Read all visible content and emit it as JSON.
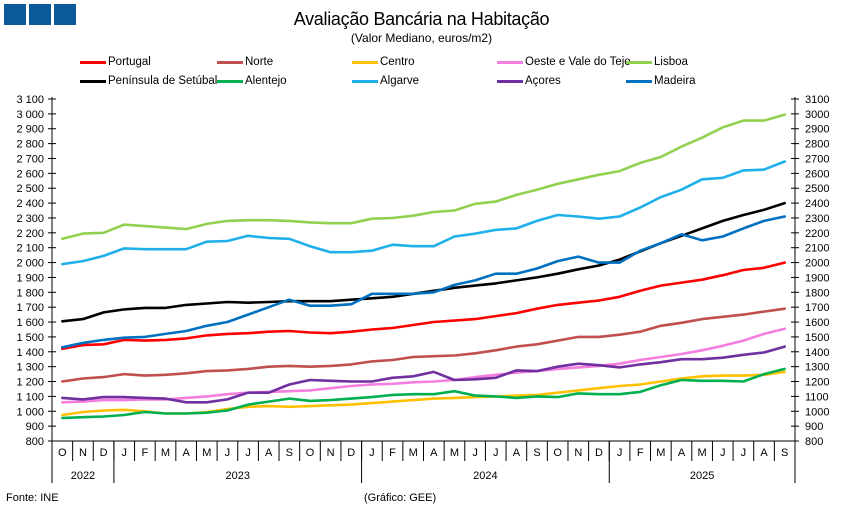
{
  "logo": {
    "name": "GEE logo",
    "color": "#0a5a9c"
  },
  "footer": {
    "source": "Fonte: INE",
    "credit": "(Gráfico: GEE)"
  },
  "chart_data": {
    "type": "line",
    "title": "Avaliação Bancária na Habitação",
    "subtitle": "(Valor Mediano, euros/m2)",
    "xlabel": "",
    "ylabel": "",
    "ylim": [
      800,
      3100
    ],
    "yticks": [
      800,
      900,
      1000,
      1100,
      1200,
      1300,
      1400,
      1500,
      1600,
      1700,
      1800,
      1900,
      2000,
      2100,
      2200,
      2300,
      2400,
      2500,
      2600,
      2700,
      2800,
      2900,
      3000,
      3100
    ],
    "ytick_labels_left": [
      "800",
      "900",
      "1 000",
      "1 100",
      "1 200",
      "1 300",
      "1 400",
      "1 500",
      "1 600",
      "1 700",
      "1 800",
      "1 900",
      "2 000",
      "2 100",
      "2 200",
      "2 300",
      "2 400",
      "2 500",
      "2 600",
      "2 700",
      "2 800",
      "2 900",
      "3 000",
      "3 100"
    ],
    "ytick_labels_right": [
      "800",
      "900",
      "1000",
      "1100",
      "1200",
      "1300",
      "1400",
      "1500",
      "1600",
      "1700",
      "1800",
      "1900",
      "2000",
      "2100",
      "2200",
      "2300",
      "2400",
      "2500",
      "2600",
      "2700",
      "2800",
      "2900",
      "3000",
      "3100"
    ],
    "grid": false,
    "legend_position": "top",
    "x": [
      "O",
      "N",
      "D",
      "J",
      "F",
      "M",
      "A",
      "M",
      "J",
      "J",
      "A",
      "S",
      "O",
      "N",
      "D",
      "J",
      "F",
      "M",
      "A",
      "M",
      "J",
      "J",
      "A",
      "S",
      "O",
      "N",
      "D",
      "J",
      "F",
      "M",
      "A",
      "M",
      "J",
      "J",
      "A",
      "S"
    ],
    "years": [
      {
        "label": "2022",
        "start": 0,
        "count": 3
      },
      {
        "label": "2023",
        "start": 3,
        "count": 12
      },
      {
        "label": "2024",
        "start": 15,
        "count": 12
      },
      {
        "label": "2025",
        "start": 27,
        "count": 9
      }
    ],
    "series": [
      {
        "name": "Portugal",
        "color": "#ff0000",
        "values": [
          1420,
          1445,
          1450,
          1480,
          1475,
          1480,
          1490,
          1510,
          1520,
          1525,
          1535,
          1540,
          1530,
          1525,
          1535,
          1550,
          1560,
          1580,
          1600,
          1610,
          1620,
          1640,
          1660,
          1690,
          1715,
          1730,
          1745,
          1770,
          1810,
          1845,
          1865,
          1885,
          1915,
          1950,
          1965,
          2000
        ]
      },
      {
        "name": "Norte",
        "color": "#c0504d",
        "values": [
          1200,
          1220,
          1230,
          1250,
          1240,
          1245,
          1255,
          1270,
          1275,
          1285,
          1300,
          1305,
          1300,
          1305,
          1315,
          1335,
          1345,
          1365,
          1370,
          1375,
          1390,
          1410,
          1435,
          1450,
          1475,
          1500,
          1500,
          1515,
          1535,
          1575,
          1595,
          1620,
          1635,
          1650,
          1670,
          1690
        ]
      },
      {
        "name": "Centro",
        "color": "#ffc000",
        "values": [
          975,
          995,
          1005,
          1010,
          1000,
          985,
          985,
          995,
          1015,
          1030,
          1035,
          1030,
          1035,
          1040,
          1045,
          1055,
          1065,
          1075,
          1085,
          1090,
          1095,
          1100,
          1105,
          1110,
          1125,
          1140,
          1155,
          1170,
          1180,
          1200,
          1220,
          1235,
          1240,
          1240,
          1245,
          1265
        ]
      },
      {
        "name": "Oeste e Vale do Tejo",
        "color": "#f47fdf",
        "values": [
          1060,
          1065,
          1075,
          1075,
          1080,
          1080,
          1090,
          1100,
          1115,
          1125,
          1130,
          1135,
          1140,
          1155,
          1170,
          1180,
          1185,
          1195,
          1200,
          1210,
          1230,
          1245,
          1260,
          1270,
          1285,
          1295,
          1305,
          1320,
          1345,
          1365,
          1385,
          1410,
          1440,
          1475,
          1520,
          1555
        ]
      },
      {
        "name": "Lisboa",
        "color": "#92d050",
        "values": [
          2160,
          2195,
          2200,
          2255,
          2245,
          2235,
          2225,
          2260,
          2280,
          2285,
          2285,
          2280,
          2270,
          2265,
          2265,
          2295,
          2300,
          2315,
          2340,
          2350,
          2395,
          2410,
          2455,
          2490,
          2530,
          2560,
          2590,
          2615,
          2670,
          2710,
          2780,
          2840,
          2910,
          2955,
          2955,
          2995
        ]
      },
      {
        "name": "Península de Setúbal",
        "color": "#000000",
        "values": [
          1605,
          1620,
          1665,
          1685,
          1695,
          1695,
          1715,
          1725,
          1735,
          1730,
          1735,
          1740,
          1740,
          1740,
          1750,
          1760,
          1770,
          1790,
          1810,
          1830,
          1845,
          1860,
          1880,
          1900,
          1925,
          1955,
          1980,
          2020,
          2075,
          2130,
          2180,
          2230,
          2280,
          2320,
          2355,
          2400
        ]
      },
      {
        "name": "Alentejo",
        "color": "#00b050",
        "values": [
          955,
          960,
          965,
          975,
          995,
          985,
          985,
          990,
          1005,
          1045,
          1065,
          1085,
          1070,
          1075,
          1085,
          1095,
          1110,
          1115,
          1115,
          1135,
          1105,
          1100,
          1090,
          1100,
          1095,
          1120,
          1115,
          1115,
          1130,
          1175,
          1210,
          1205,
          1205,
          1200,
          1250,
          1285
        ]
      },
      {
        "name": "Algarve",
        "color": "#1fb0ea",
        "values": [
          1990,
          2010,
          2045,
          2095,
          2090,
          2090,
          2090,
          2140,
          2145,
          2180,
          2165,
          2160,
          2110,
          2070,
          2070,
          2080,
          2120,
          2110,
          2110,
          2175,
          2195,
          2220,
          2230,
          2280,
          2320,
          2310,
          2295,
          2310,
          2370,
          2440,
          2490,
          2560,
          2570,
          2620,
          2625,
          2680
        ]
      },
      {
        "name": "Açores",
        "color": "#7030a0",
        "values": [
          1090,
          1080,
          1095,
          1095,
          1090,
          1085,
          1060,
          1060,
          1080,
          1125,
          1125,
          1180,
          1210,
          1205,
          1200,
          1200,
          1225,
          1235,
          1265,
          1210,
          1215,
          1225,
          1275,
          1270,
          1300,
          1320,
          1310,
          1295,
          1315,
          1330,
          1350,
          1350,
          1360,
          1380,
          1395,
          1435
        ]
      },
      {
        "name": "Madeira",
        "color": "#0070c0",
        "values": [
          1430,
          1460,
          1480,
          1495,
          1500,
          1520,
          1540,
          1575,
          1600,
          1650,
          1700,
          1750,
          1710,
          1710,
          1720,
          1790,
          1790,
          1790,
          1800,
          1850,
          1880,
          1925,
          1925,
          1960,
          2010,
          2040,
          2000,
          2000,
          2080,
          2130,
          2190,
          2150,
          2175,
          2230,
          2280,
          2310
        ]
      }
    ]
  }
}
